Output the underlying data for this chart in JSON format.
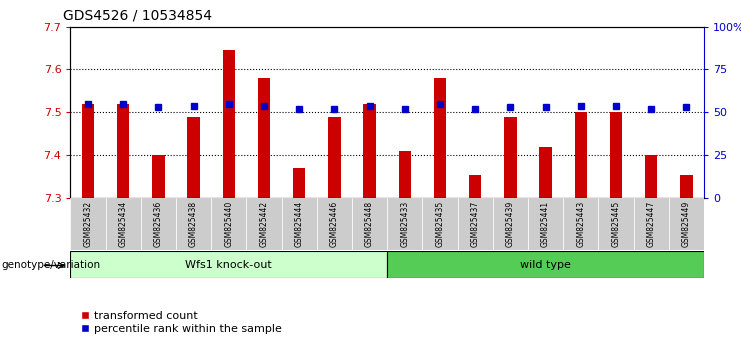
{
  "title": "GDS4526 / 10534854",
  "samples": [
    "GSM825432",
    "GSM825434",
    "GSM825436",
    "GSM825438",
    "GSM825440",
    "GSM825442",
    "GSM825444",
    "GSM825446",
    "GSM825448",
    "GSM825433",
    "GSM825435",
    "GSM825437",
    "GSM825439",
    "GSM825441",
    "GSM825443",
    "GSM825445",
    "GSM825447",
    "GSM825449"
  ],
  "red_values": [
    7.52,
    7.52,
    7.4,
    7.49,
    7.645,
    7.58,
    7.37,
    7.49,
    7.52,
    7.41,
    7.58,
    7.355,
    7.49,
    7.42,
    7.5,
    7.5,
    7.4,
    7.355
  ],
  "blue_values": [
    55,
    55,
    53,
    54,
    55,
    54,
    52,
    52,
    54,
    52,
    55,
    52,
    53,
    53,
    54,
    54,
    52,
    53
  ],
  "y_min": 7.3,
  "y_max": 7.7,
  "y_ticks": [
    7.3,
    7.4,
    7.5,
    7.6,
    7.7
  ],
  "y2_ticks": [
    0,
    25,
    50,
    75,
    100
  ],
  "group1_label": "Wfs1 knock-out",
  "group2_label": "wild type",
  "group1_count": 9,
  "group2_count": 9,
  "red_color": "#cc0000",
  "blue_color": "#0000cc",
  "group1_bg": "#ccffcc",
  "group2_bg": "#55cc55",
  "tick_bg": "#cccccc",
  "legend_red": "transformed count",
  "legend_blue": "percentile rank within the sample",
  "genotype_label": "genotype/variation"
}
